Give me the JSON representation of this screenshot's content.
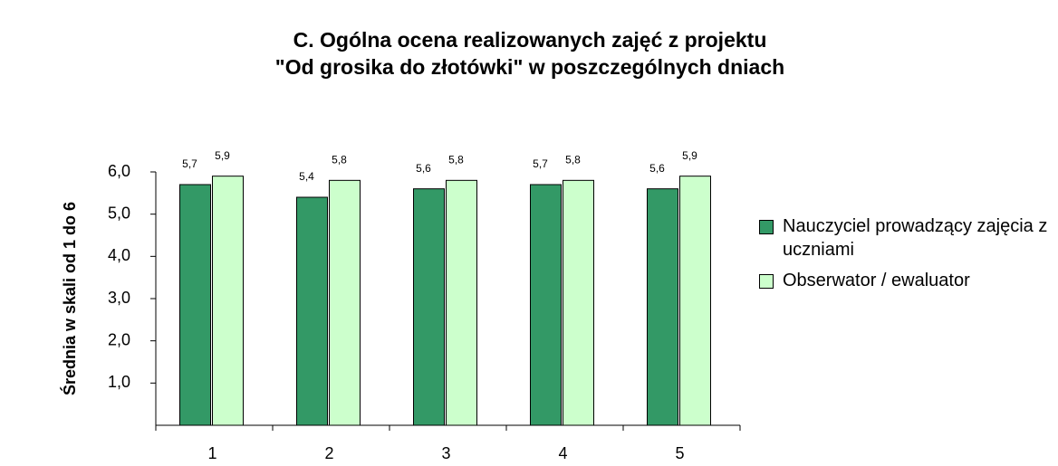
{
  "chart_data": {
    "type": "bar",
    "title": [
      "C. Ogólna ocena realizowanych zajęć  z projektu",
      "\"Od grosika do złotówki\" w poszczególnych dniach"
    ],
    "y_label": "Średnia w skali od 1 do 6",
    "categories": [
      "1",
      "2",
      "3",
      "4",
      "5"
    ],
    "series": [
      {
        "name": "Nauczyciel prowadzący zajęcia z uczniami",
        "color": "#339966",
        "values": [
          5.7,
          5.4,
          5.6,
          5.7,
          5.6
        ],
        "value_labels": [
          "5,7",
          "5,4",
          "5,6",
          "5,7",
          "5,6"
        ]
      },
      {
        "name": "Obserwator / ewaluator",
        "color": "#ccffcc",
        "values": [
          5.9,
          5.8,
          5.8,
          5.8,
          5.9
        ],
        "value_labels": [
          "5,9",
          "5,8",
          "5,8",
          "5,8",
          "5,9"
        ]
      }
    ],
    "ylim": [
      0,
      6
    ],
    "yticks": [
      {
        "value": 1,
        "label": "1,0"
      },
      {
        "value": 2,
        "label": "2,0"
      },
      {
        "value": 3,
        "label": "3,0"
      },
      {
        "value": 4,
        "label": "4,0"
      },
      {
        "value": 5,
        "label": "5,0"
      },
      {
        "value": 6,
        "label": "6,0"
      }
    ],
    "legend": "right"
  }
}
